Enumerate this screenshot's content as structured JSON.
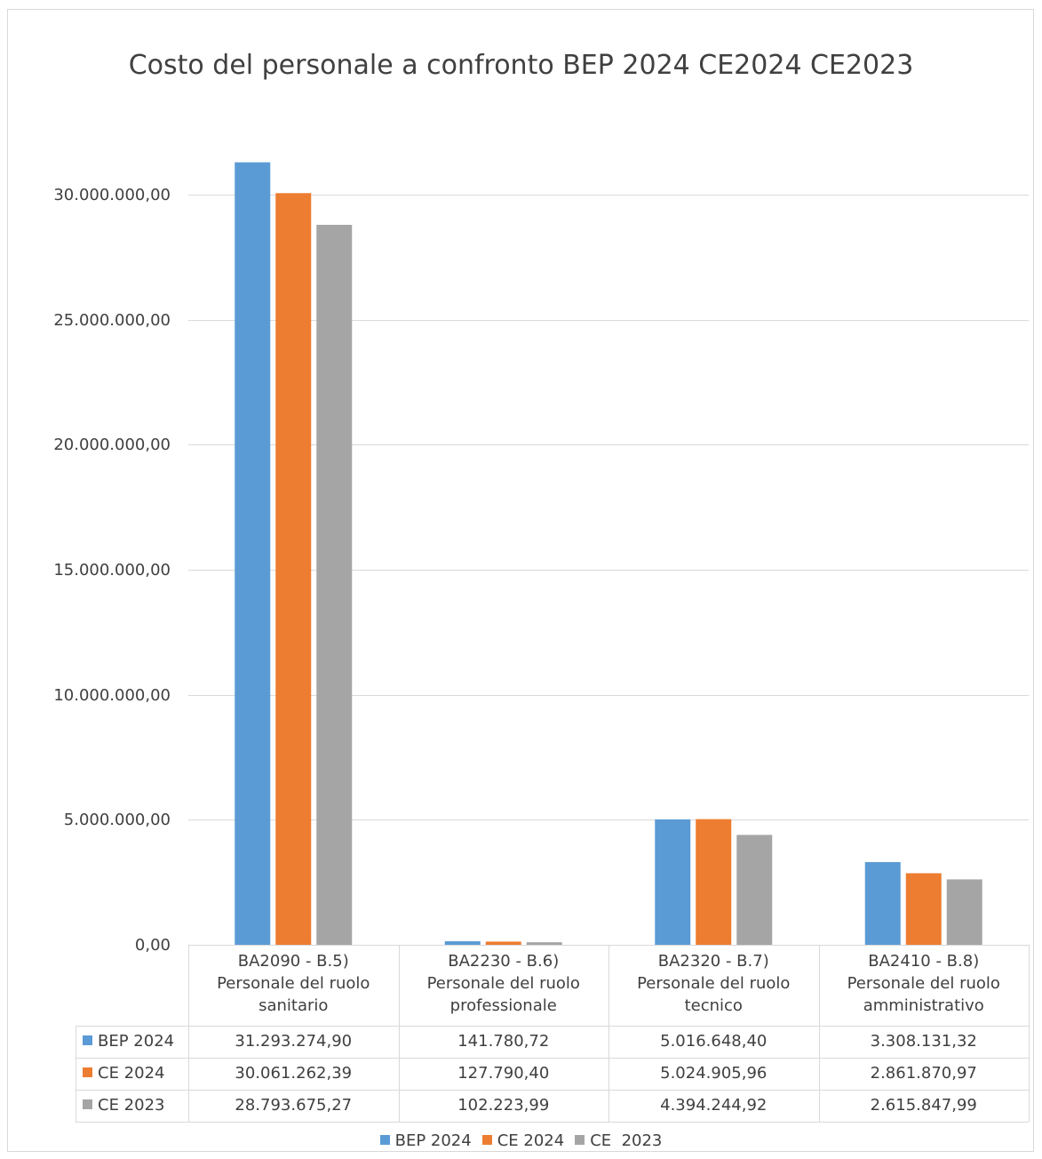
{
  "chart_data": {
    "type": "bar",
    "title": "Costo del personale a confronto BEP 2024 CE2024 CE2023",
    "categories": [
      [
        "BA2090 - B.5)",
        "Personale del ruolo",
        "sanitario"
      ],
      [
        "BA2230 - B.6)",
        "Personale del ruolo",
        "professionale"
      ],
      [
        "BA2320 - B.7)",
        "Personale del ruolo",
        "tecnico"
      ],
      [
        "BA2410 - B.8)",
        "Personale del ruolo",
        "amministrativo"
      ]
    ],
    "series": [
      {
        "name": "BEP 2024",
        "color": "#5b9bd5",
        "values": [
          31293274.9,
          141780.72,
          5016648.4,
          3308131.32
        ],
        "labels": [
          "31.293.274,90",
          "141.780,72",
          "5.016.648,40",
          "3.308.131,32"
        ]
      },
      {
        "name": "CE 2024",
        "color": "#ed7d31",
        "values": [
          30061262.39,
          127790.4,
          5024905.96,
          2861870.97
        ],
        "labels": [
          "30.061.262,39",
          "127.790,40",
          "5.024.905,96",
          "2.861.870,97"
        ]
      },
      {
        "name": "CE  2023",
        "color": "#a5a5a5",
        "values": [
          28793675.27,
          102223.99,
          4394244.92,
          2615847.99
        ],
        "labels": [
          "28.793.675,27",
          "102.223,99",
          "4.394.244,92",
          "2.615.847,99"
        ]
      }
    ],
    "y_ticks": [
      {
        "value": 0,
        "label": "0,00"
      },
      {
        "value": 5000000,
        "label": "5.000.000,00"
      },
      {
        "value": 10000000,
        "label": "10.000.000,00"
      },
      {
        "value": 15000000,
        "label": "15.000.000,00"
      },
      {
        "value": 20000000,
        "label": "20.000.000,00"
      },
      {
        "value": 25000000,
        "label": "25.000.000,00"
      },
      {
        "value": 30000000,
        "label": "30.000.000,00"
      }
    ],
    "ylim": [
      0,
      30000000
    ],
    "grid": true,
    "legend": "bottom",
    "data_table": true
  }
}
